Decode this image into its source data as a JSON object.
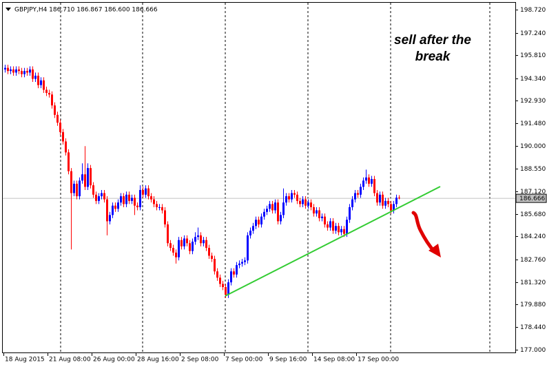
{
  "chart_data": {
    "type": "candlestick",
    "header": "GBPJPY,H4  186.710 186.867 186.600 186.666",
    "annotation": [
      "sell after the",
      "break"
    ],
    "annotation_color": "#e00000",
    "up_color": "#0000ff",
    "down_color": "#ff0000",
    "last_price": 186.666,
    "trendline": {
      "color": "#33cc33",
      "x": [
        80,
        158
      ],
      "y": [
        180.43,
        187.42
      ]
    },
    "ylim": [
      176.82,
      199.16
    ],
    "yticks": [
      {
        "value": 198.72,
        "label": "198.720"
      },
      {
        "value": 197.24,
        "label": "197.240"
      },
      {
        "value": 195.81,
        "label": "195.810"
      },
      {
        "value": 194.34,
        "label": "194.340"
      },
      {
        "value": 192.93,
        "label": "192.930"
      },
      {
        "value": 191.48,
        "label": "191.480"
      },
      {
        "value": 190.0,
        "label": "190.000"
      },
      {
        "value": 188.55,
        "label": "188.550"
      },
      {
        "value": 187.12,
        "label": "187.120"
      },
      {
        "value": 185.68,
        "label": "185.680"
      },
      {
        "value": 184.24,
        "label": "184.240"
      },
      {
        "value": 182.76,
        "label": "182.760"
      },
      {
        "value": 181.32,
        "label": "181.320"
      },
      {
        "value": 179.88,
        "label": "179.880"
      },
      {
        "value": 178.44,
        "label": "178.440"
      },
      {
        "value": 177.0,
        "label": "177.000"
      }
    ],
    "categories": [
      "18 Aug 2015",
      null,
      null,
      null,
      null,
      null,
      null,
      null,
      null,
      null,
      null,
      null,
      null,
      null,
      null,
      null,
      "21 Aug 08:00",
      null,
      null,
      null,
      null,
      null,
      null,
      null,
      null,
      null,
      null,
      null,
      null,
      null,
      null,
      null,
      "26 Aug 00:00",
      null,
      null,
      null,
      null,
      null,
      null,
      null,
      null,
      null,
      null,
      null,
      null,
      null,
      null,
      null,
      "28 Aug 16:00",
      null,
      null,
      null,
      null,
      null,
      null,
      null,
      null,
      null,
      null,
      null,
      null,
      null,
      null,
      null,
      "2 Sep 08:00",
      null,
      null,
      null,
      null,
      null,
      null,
      null,
      null,
      null,
      null,
      null,
      null,
      null,
      null,
      null,
      "7 Sep 00:00",
      null,
      null,
      null,
      null,
      null,
      null,
      null,
      null,
      null,
      null,
      null,
      null,
      null,
      null,
      null,
      "9 Sep 16:00",
      null,
      null,
      null,
      null,
      null,
      null,
      null,
      null,
      null,
      null,
      null,
      null,
      null,
      null,
      null,
      "14 Sep 08:00",
      null,
      null,
      null,
      null,
      null,
      null,
      null,
      null,
      null,
      null,
      null,
      null,
      null,
      null,
      null,
      "17 Sep 00:00",
      null,
      null,
      null,
      null,
      null,
      null,
      null,
      null,
      null,
      null,
      null,
      null,
      null,
      null,
      null
    ],
    "ohlc": [
      [
        194.9,
        195.2,
        194.7,
        195.0
      ],
      [
        195.0,
        195.2,
        194.6,
        194.8
      ],
      [
        194.8,
        195.1,
        194.6,
        194.9
      ],
      [
        194.9,
        195.1,
        194.5,
        194.7
      ],
      [
        194.7,
        195.1,
        194.5,
        194.9
      ],
      [
        194.9,
        195.1,
        194.6,
        194.8
      ],
      [
        194.8,
        195.0,
        194.4,
        194.6
      ],
      [
        194.6,
        195.0,
        194.4,
        194.8
      ],
      [
        194.8,
        195.0,
        194.5,
        194.7
      ],
      [
        194.7,
        195.1,
        194.5,
        194.9
      ],
      [
        194.9,
        195.1,
        194.1,
        194.3
      ],
      [
        194.3,
        194.7,
        194.1,
        194.5
      ],
      [
        194.5,
        194.7,
        193.7,
        193.9
      ],
      [
        193.9,
        194.4,
        193.7,
        194.2
      ],
      [
        194.2,
        194.4,
        193.4,
        193.6
      ],
      [
        193.6,
        193.8,
        193.2,
        193.4
      ],
      [
        193.4,
        193.6,
        193.1,
        193.3
      ],
      [
        193.3,
        193.5,
        192.4,
        192.6
      ],
      [
        192.6,
        192.8,
        191.8,
        192.0
      ],
      [
        192.0,
        192.2,
        191.3,
        191.5
      ],
      [
        191.5,
        191.7,
        190.7,
        190.9
      ],
      [
        190.9,
        191.1,
        190.1,
        190.3
      ],
      [
        190.3,
        190.5,
        189.4,
        189.6
      ],
      [
        189.6,
        189.8,
        188.2,
        188.4
      ],
      [
        188.4,
        188.6,
        183.4,
        187.0
      ],
      [
        187.0,
        187.8,
        186.8,
        187.6
      ],
      [
        187.6,
        187.8,
        186.6,
        186.8
      ],
      [
        186.8,
        188.0,
        186.6,
        187.8
      ],
      [
        187.8,
        188.9,
        187.6,
        188.2
      ],
      [
        188.2,
        190.0,
        187.2,
        187.4
      ],
      [
        187.4,
        188.9,
        187.2,
        188.6
      ],
      [
        188.6,
        188.8,
        187.3,
        187.5
      ],
      [
        187.5,
        187.7,
        186.7,
        186.9
      ],
      [
        186.9,
        187.1,
        186.3,
        186.5
      ],
      [
        186.5,
        187.0,
        186.3,
        186.8
      ],
      [
        186.8,
        187.2,
        186.6,
        187.0
      ],
      [
        187.0,
        187.2,
        186.4,
        186.6
      ],
      [
        186.6,
        186.8,
        184.3,
        185.2
      ],
      [
        185.2,
        185.8,
        185.0,
        185.6
      ],
      [
        185.6,
        186.4,
        185.4,
        186.2
      ],
      [
        186.2,
        186.4,
        185.8,
        186.0
      ],
      [
        186.0,
        186.6,
        185.8,
        186.4
      ],
      [
        186.4,
        187.0,
        186.2,
        186.8
      ],
      [
        186.8,
        187.0,
        186.1,
        186.3
      ],
      [
        186.3,
        187.1,
        186.1,
        186.9
      ],
      [
        186.9,
        187.1,
        186.3,
        186.5
      ],
      [
        186.5,
        186.9,
        186.3,
        186.7
      ],
      [
        186.7,
        186.9,
        185.6,
        186.2
      ],
      [
        186.2,
        186.4,
        185.9,
        186.1
      ],
      [
        186.1,
        187.5,
        185.9,
        187.2
      ],
      [
        187.2,
        187.4,
        186.7,
        186.9
      ],
      [
        186.9,
        187.5,
        186.7,
        187.3
      ],
      [
        187.3,
        187.5,
        186.6,
        186.8
      ],
      [
        186.8,
        187.0,
        186.4,
        186.6
      ],
      [
        186.6,
        186.8,
        186.1,
        186.3
      ],
      [
        186.3,
        186.5,
        185.9,
        186.1
      ],
      [
        186.1,
        186.3,
        185.9,
        186.1
      ],
      [
        186.1,
        186.3,
        185.7,
        185.9
      ],
      [
        185.9,
        186.1,
        184.8,
        185.0
      ],
      [
        185.0,
        185.2,
        183.6,
        183.8
      ],
      [
        183.8,
        184.0,
        183.3,
        183.5
      ],
      [
        183.5,
        183.7,
        183.0,
        183.2
      ],
      [
        183.2,
        183.4,
        182.5,
        182.9
      ],
      [
        182.9,
        184.2,
        182.7,
        184.0
      ],
      [
        184.0,
        184.2,
        183.4,
        183.6
      ],
      [
        183.6,
        184.3,
        183.4,
        184.1
      ],
      [
        184.1,
        184.3,
        183.6,
        183.8
      ],
      [
        183.8,
        184.0,
        183.1,
        183.3
      ],
      [
        183.3,
        184.1,
        183.1,
        183.9
      ],
      [
        183.9,
        184.5,
        183.7,
        184.2
      ],
      [
        184.2,
        184.8,
        184.0,
        184.3
      ],
      [
        184.3,
        184.5,
        183.6,
        183.8
      ],
      [
        183.8,
        184.2,
        183.6,
        184.0
      ],
      [
        184.0,
        184.2,
        183.3,
        183.5
      ],
      [
        183.5,
        183.7,
        182.8,
        183.0
      ],
      [
        183.0,
        183.2,
        182.6,
        182.8
      ],
      [
        182.8,
        183.0,
        181.8,
        182.0
      ],
      [
        182.0,
        182.2,
        181.4,
        181.6
      ],
      [
        181.6,
        181.8,
        181.0,
        181.2
      ],
      [
        181.2,
        181.4,
        180.8,
        181.0
      ],
      [
        181.0,
        181.2,
        180.3,
        180.5
      ],
      [
        180.5,
        181.5,
        180.3,
        181.3
      ],
      [
        181.3,
        182.2,
        181.1,
        182.0
      ],
      [
        182.0,
        182.2,
        181.6,
        181.8
      ],
      [
        181.8,
        182.6,
        181.6,
        182.4
      ],
      [
        182.4,
        182.7,
        182.2,
        182.5
      ],
      [
        182.5,
        182.8,
        182.3,
        182.6
      ],
      [
        182.6,
        182.9,
        182.4,
        182.7
      ],
      [
        182.7,
        184.5,
        182.5,
        184.3
      ],
      [
        184.3,
        184.8,
        184.1,
        184.6
      ],
      [
        184.6,
        185.1,
        184.4,
        184.9
      ],
      [
        184.9,
        185.5,
        184.7,
        185.3
      ],
      [
        185.3,
        185.5,
        184.8,
        185.0
      ],
      [
        185.0,
        185.7,
        184.8,
        185.5
      ],
      [
        185.5,
        186.0,
        185.3,
        185.8
      ],
      [
        185.8,
        186.2,
        185.6,
        186.0
      ],
      [
        186.0,
        186.5,
        185.8,
        186.3
      ],
      [
        186.3,
        186.5,
        185.7,
        185.9
      ],
      [
        185.9,
        186.6,
        185.7,
        186.4
      ],
      [
        186.4,
        186.6,
        185.0,
        185.2
      ],
      [
        185.2,
        185.8,
        185.0,
        185.6
      ],
      [
        185.6,
        187.3,
        185.4,
        186.4
      ],
      [
        186.4,
        187.0,
        186.2,
        186.8
      ],
      [
        186.8,
        187.0,
        186.4,
        186.6
      ],
      [
        186.6,
        187.2,
        186.4,
        187.0
      ],
      [
        187.0,
        187.2,
        186.7,
        186.9
      ],
      [
        186.9,
        187.1,
        186.3,
        186.5
      ],
      [
        186.5,
        186.7,
        186.1,
        186.3
      ],
      [
        186.3,
        186.8,
        186.1,
        186.6
      ],
      [
        186.6,
        186.8,
        186.0,
        186.2
      ],
      [
        186.2,
        186.6,
        186.0,
        186.4
      ],
      [
        186.4,
        186.6,
        185.9,
        186.1
      ],
      [
        186.1,
        186.3,
        185.5,
        185.7
      ],
      [
        185.7,
        186.1,
        185.5,
        185.9
      ],
      [
        185.9,
        186.1,
        185.2,
        185.4
      ],
      [
        185.4,
        185.7,
        185.2,
        185.5
      ],
      [
        185.5,
        185.7,
        184.8,
        185.0
      ],
      [
        185.0,
        185.2,
        184.6,
        184.8
      ],
      [
        184.8,
        185.4,
        184.6,
        185.2
      ],
      [
        185.2,
        185.4,
        184.4,
        184.6
      ],
      [
        184.6,
        185.1,
        184.4,
        184.9
      ],
      [
        184.9,
        185.1,
        184.3,
        184.5
      ],
      [
        184.5,
        184.9,
        184.3,
        184.7
      ],
      [
        184.7,
        184.9,
        184.2,
        184.4
      ],
      [
        184.4,
        185.5,
        184.2,
        185.3
      ],
      [
        185.3,
        186.3,
        185.1,
        186.1
      ],
      [
        186.1,
        186.8,
        185.9,
        186.6
      ],
      [
        186.6,
        187.2,
        186.4,
        187.0
      ],
      [
        187.0,
        187.2,
        186.7,
        186.9
      ],
      [
        186.9,
        187.6,
        186.7,
        187.4
      ],
      [
        187.4,
        188.0,
        187.2,
        187.8
      ],
      [
        187.8,
        188.5,
        187.6,
        188.0
      ],
      [
        188.0,
        188.2,
        187.4,
        187.6
      ],
      [
        187.6,
        188.1,
        187.4,
        187.9
      ],
      [
        187.9,
        188.1,
        186.8,
        187.0
      ],
      [
        187.0,
        187.2,
        186.2,
        186.4
      ],
      [
        186.4,
        187.1,
        186.2,
        186.9
      ],
      [
        186.9,
        187.1,
        186.0,
        186.2
      ],
      [
        186.2,
        186.7,
        186.0,
        186.5
      ],
      [
        186.5,
        186.7,
        186.1,
        186.3
      ],
      [
        186.3,
        186.5,
        185.7,
        185.9
      ],
      [
        185.9,
        186.5,
        185.7,
        186.3
      ],
      [
        186.3,
        186.9,
        186.1,
        186.71
      ],
      [
        186.71,
        186.867,
        186.6,
        186.666
      ]
    ]
  }
}
